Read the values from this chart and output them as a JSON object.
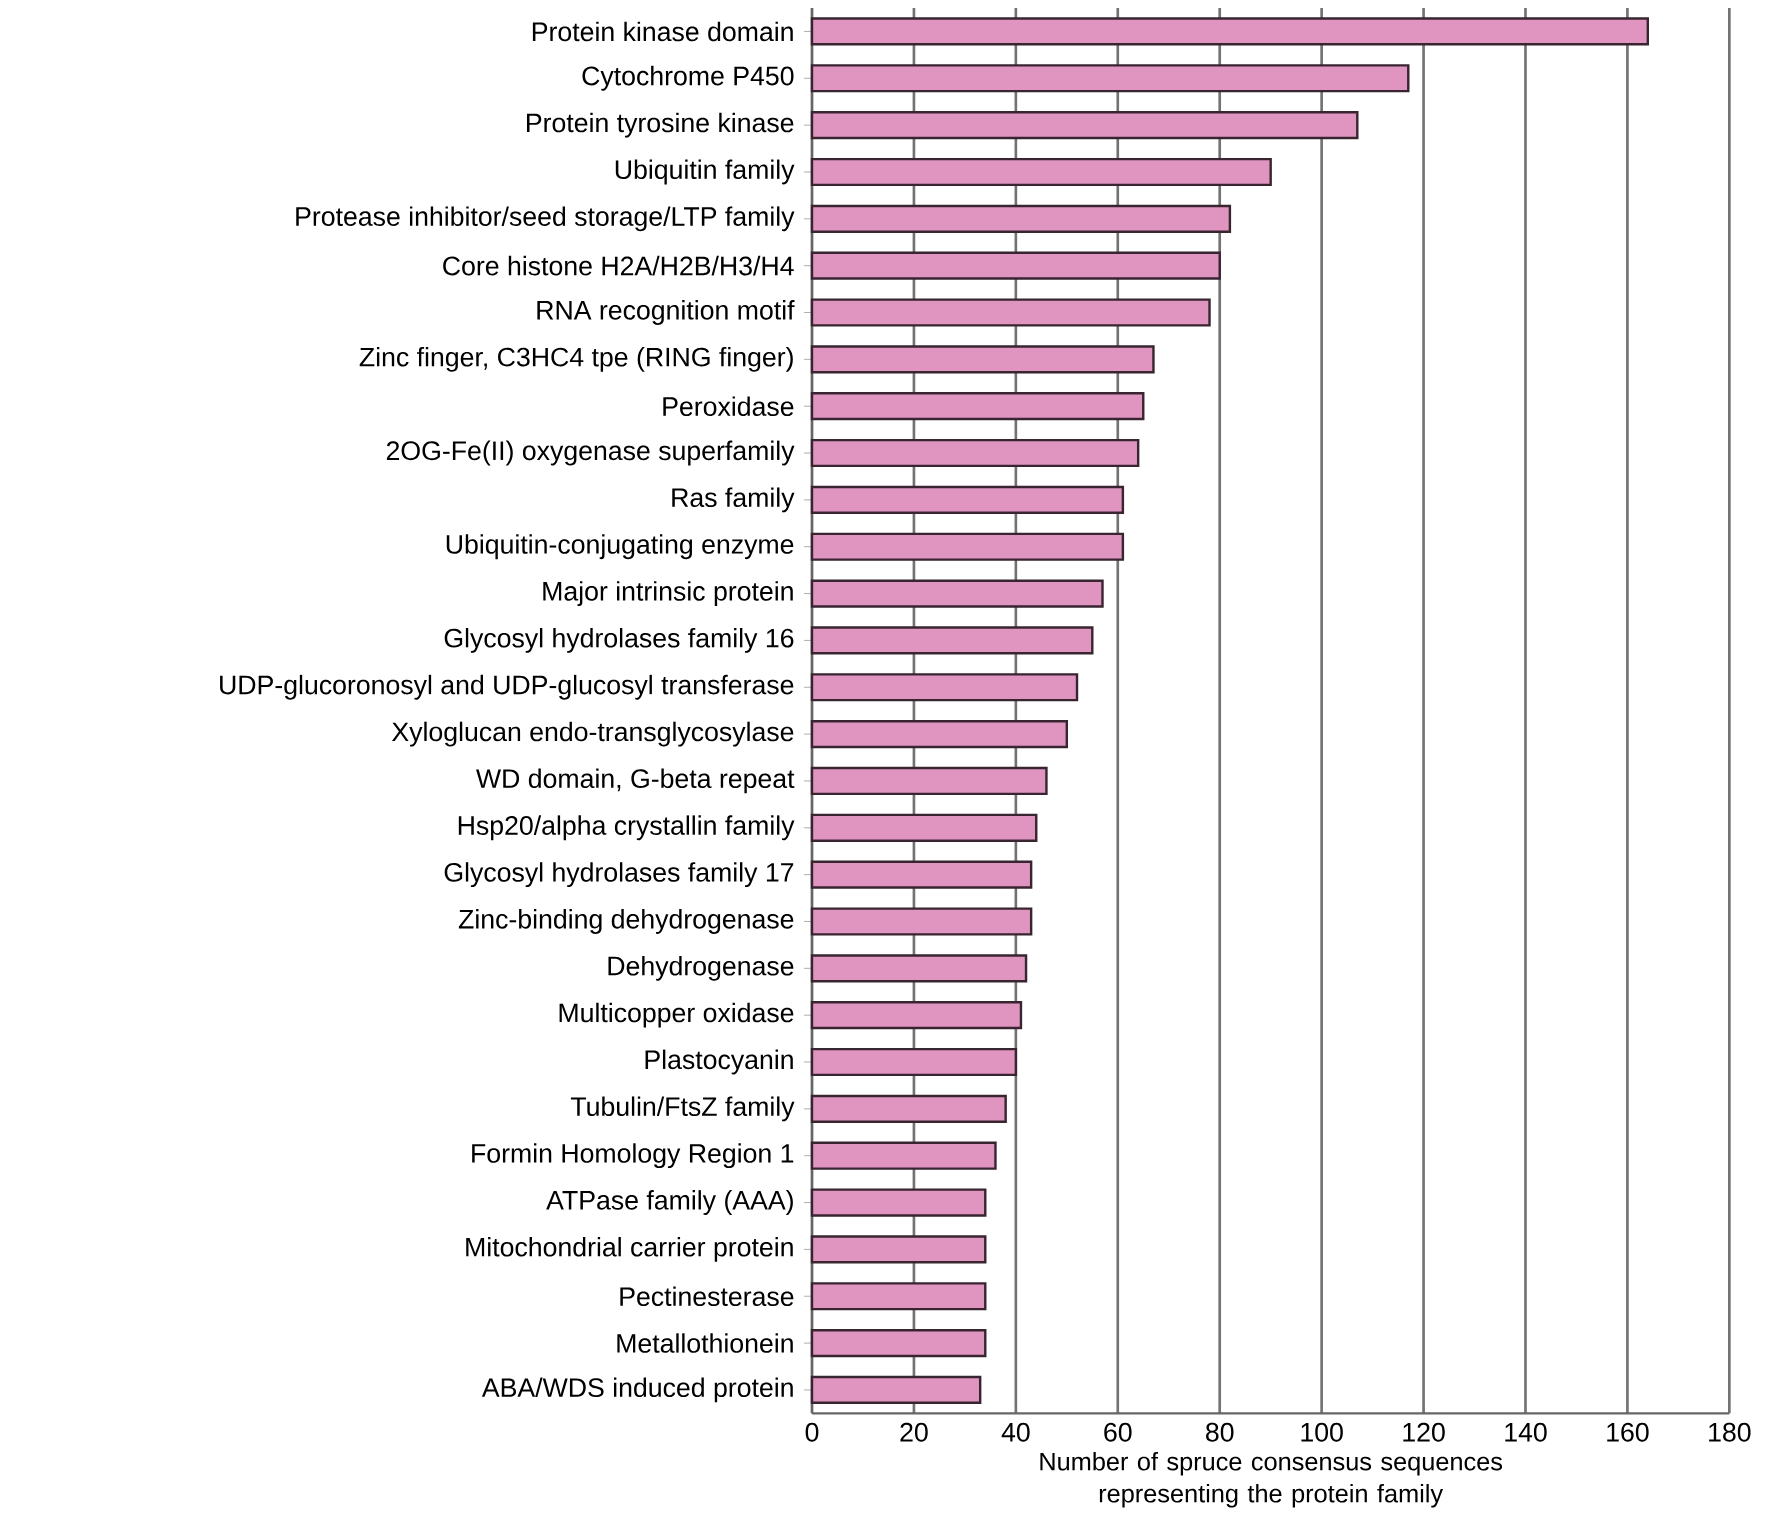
{
  "chart_data": {
    "type": "bar",
    "orientation": "horizontal",
    "xlabel": "Number of spruce consensus sequences representing the protein family",
    "categories": [
      "Protein kinase domain",
      "Cytochrome P450",
      "Protein tyrosine kinase",
      "Ubiquitin family",
      "Protease inhibitor/seed storage/LTP family",
      "Core histone H2A/H2B/H3/H4",
      "RNA recognition motif",
      "Zinc finger, C3HC4 tpe (RING finger)",
      "Peroxidase",
      "2OG-Fe(II) oxygenase superfamily",
      "Ras family",
      "Ubiquitin-conjugating enzyme",
      "Major intrinsic protein",
      "Glycosyl hydrolases family 16",
      "UDP-glucoronosyl and UDP-glucosyl transferase",
      "Xyloglucan endo-transglycosylase",
      "WD domain, G-beta repeat",
      "Hsp20/alpha crystallin family",
      "Glycosyl hydrolases family 17",
      "Zinc-binding dehydrogenase",
      "Dehydrogenase",
      "Multicopper oxidase",
      "Plastocyanin",
      "Tubulin/FtsZ family",
      "Formin Homology Region 1",
      "ATPase family (AAA)",
      "Mitochondrial carrier protein",
      "Pectinesterase",
      "Metallothionein",
      "ABA/WDS induced protein"
    ],
    "values": [
      164,
      117,
      107,
      90,
      82,
      80,
      78,
      67,
      65,
      64,
      61,
      61,
      57,
      55,
      52,
      50,
      46,
      44,
      43,
      43,
      42,
      41,
      40,
      38,
      36,
      34,
      34,
      34,
      34,
      33
    ],
    "color": "#e095c0",
    "xlim": [
      0,
      180
    ],
    "xticks": [
      0,
      20,
      40,
      60,
      80,
      100,
      120,
      140,
      160,
      180
    ],
    "grid": "x"
  }
}
